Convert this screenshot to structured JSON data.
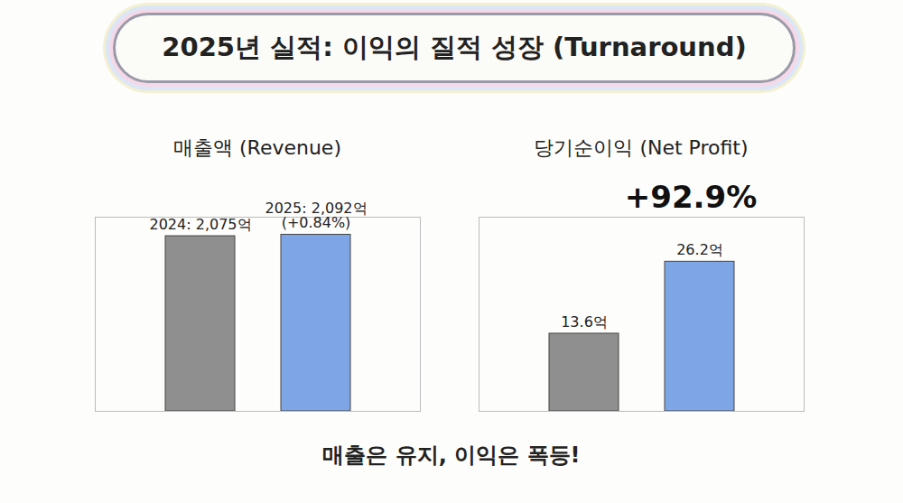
{
  "title": "2025년 실적: 이익의 질적 성장 (Turnaround)",
  "caption": "매출은 유지, 이익은 폭등!",
  "chart_data": [
    {
      "type": "bar",
      "title": "매출액 (Revenue)",
      "categories": [
        null,
        null
      ],
      "values": [
        2075,
        2092
      ],
      "value_labels": [
        "2024: 2,075억",
        "2025: 2,092억 (+0.84%)"
      ],
      "colors": [
        "#8f8f8f",
        "#7ea6e6"
      ],
      "ylim": [
        0,
        2300
      ],
      "yticks": [],
      "tick_labels": false,
      "data_labels": true
    },
    {
      "type": "bar",
      "title": "당기순이익 (Net Profit)",
      "categories": [
        null,
        null
      ],
      "values": [
        13.6,
        26.2
      ],
      "value_labels": [
        "13.6억",
        "26.2억"
      ],
      "colors": [
        "#8f8f8f",
        "#7ea6e6"
      ],
      "ylim": [
        0,
        34
      ],
      "yticks": [],
      "tick_labels": false,
      "data_labels": true,
      "annotation": "+92.9%"
    }
  ]
}
